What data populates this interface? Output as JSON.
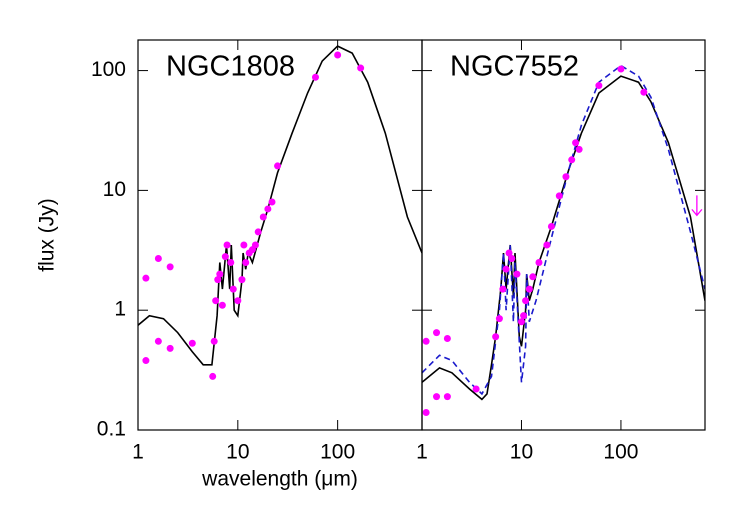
{
  "chart_data": [
    {
      "type": "line",
      "title": "NGC1808",
      "xlabel": "wavelength (μm)",
      "ylabel": "flux (Jy)",
      "log_x": true,
      "log_y": true,
      "xlim": [
        1,
        700
      ],
      "ylim": [
        0.1,
        180
      ],
      "xticks": [
        1,
        10,
        100
      ],
      "yticks": [
        0.1,
        1,
        10,
        100
      ],
      "show_ytick_labels": true,
      "series": [
        {
          "style": "solid",
          "color": "#000000",
          "x": [
            1,
            1.3,
            1.8,
            2.5,
            3.5,
            4.5,
            5.5,
            6.2,
            6.6,
            7,
            7.7,
            8.3,
            8.6,
            9.2,
            10,
            11,
            11.3,
            12,
            12.7,
            14,
            17,
            20,
            25,
            35,
            50,
            70,
            100,
            140,
            200,
            300,
            500,
            700
          ],
          "values": [
            0.75,
            0.9,
            0.85,
            0.65,
            0.45,
            0.35,
            0.35,
            0.9,
            2.5,
            1.5,
            3.5,
            1.5,
            3.5,
            1.0,
            0.9,
            1.8,
            3.0,
            2.2,
            3.0,
            2.5,
            4.5,
            7,
            14,
            30,
            65,
            120,
            160,
            140,
            80,
            30,
            6,
            3
          ]
        },
        {
          "style": "points",
          "color": "#ff00ff",
          "x": [
            1.2,
            1.2,
            1.6,
            1.6,
            2.1,
            2.1,
            3.5,
            5.6,
            5.8,
            6,
            6.3,
            6.6,
            7,
            7.5,
            7.8,
            8.5,
            9,
            10,
            11,
            11.5,
            12,
            13,
            14,
            15,
            16,
            18,
            20,
            22,
            25,
            60,
            100,
            170
          ],
          "values": [
            1.85,
            0.38,
            2.7,
            0.55,
            2.3,
            0.48,
            0.53,
            0.28,
            0.55,
            1.2,
            1.8,
            2.0,
            1.1,
            2.8,
            3.5,
            2.5,
            1.5,
            1.2,
            1.8,
            3.5,
            2.5,
            3.0,
            3.2,
            3.5,
            4.5,
            6,
            7,
            8,
            16,
            88,
            135,
            105
          ]
        }
      ]
    },
    {
      "type": "line",
      "title": "NGC7552",
      "log_x": true,
      "log_y": true,
      "xlim": [
        1,
        700
      ],
      "ylim": [
        0.1,
        180
      ],
      "xticks": [
        1,
        10,
        100
      ],
      "yticks": [
        0.1,
        1,
        10,
        100
      ],
      "show_ytick_labels": false,
      "series": [
        {
          "style": "solid",
          "color": "#000000",
          "x": [
            1,
            1.5,
            2,
            3,
            4,
            4.5,
            5,
            5.5,
            6.2,
            6.6,
            7,
            7.7,
            8.3,
            8.6,
            9.5,
            10,
            11,
            11.3,
            12,
            13,
            15,
            20,
            30,
            40,
            60,
            100,
            150,
            200,
            300,
            500,
            700
          ],
          "values": [
            0.25,
            0.33,
            0.3,
            0.22,
            0.18,
            0.2,
            0.35,
            0.6,
            1.5,
            3,
            1.5,
            3.5,
            1.3,
            3,
            0.6,
            0.5,
            1.0,
            2.0,
            1.2,
            1.5,
            2.5,
            5,
            15,
            30,
            65,
            90,
            80,
            55,
            25,
            6,
            1.2
          ]
        },
        {
          "style": "dashed",
          "color": "#1a1acc",
          "x": [
            1,
            1.5,
            2,
            3,
            4,
            5,
            6,
            6.6,
            7,
            7.7,
            8.3,
            8.6,
            10,
            11,
            11.3,
            12,
            14,
            20,
            30,
            40,
            60,
            100,
            150,
            200,
            300,
            500,
            700
          ],
          "values": [
            0.3,
            0.42,
            0.38,
            0.25,
            0.2,
            0.28,
            1.0,
            3,
            1.0,
            3.5,
            0.8,
            2.5,
            0.25,
            0.5,
            2,
            0.8,
            1.2,
            4,
            15,
            35,
            80,
            110,
            90,
            60,
            22,
            4.5,
            1.5
          ]
        },
        {
          "style": "points",
          "color": "#ff00ff",
          "x": [
            1.1,
            1.1,
            1.4,
            1.4,
            1.8,
            1.8,
            3.5,
            5.5,
            6,
            6.5,
            7,
            7.5,
            8,
            9,
            10,
            10.5,
            11,
            12,
            13,
            15,
            18,
            20,
            24,
            28,
            32,
            35,
            38,
            60,
            100,
            170
          ],
          "values": [
            0.55,
            0.14,
            0.65,
            0.19,
            0.58,
            0.19,
            0.22,
            0.6,
            0.85,
            1.5,
            2.2,
            3.0,
            2.7,
            2.0,
            0.8,
            0.9,
            1.2,
            1.5,
            1.9,
            2.5,
            3.5,
            5,
            9,
            13,
            18,
            25,
            22,
            75,
            103,
            66
          ]
        },
        {
          "style": "limit",
          "color": "#ff00ff",
          "x": [
            580
          ],
          "values": [
            7.5
          ]
        }
      ]
    }
  ]
}
